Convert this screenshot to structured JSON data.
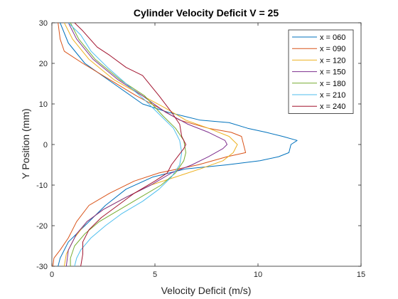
{
  "chart_data": {
    "type": "line",
    "title": "Cylinder Velocity Deficit V = 25",
    "xlabel": "Velocity Deficit (m/s)",
    "ylabel": "Y Position (mm)",
    "xlim": [
      0,
      15
    ],
    "ylim": [
      -30,
      30
    ],
    "xticks": [
      0,
      5,
      10,
      15
    ],
    "yticks": [
      -30,
      -20,
      -10,
      0,
      10,
      20,
      30
    ],
    "grid": false,
    "legend_location": "top-right",
    "series": [
      {
        "name": "x = 060",
        "color": "#0072BD",
        "points": [
          [
            0.4,
            30
          ],
          [
            0.8,
            25
          ],
          [
            1.6,
            20
          ],
          [
            3.0,
            15
          ],
          [
            4.4,
            10
          ],
          [
            5.6,
            8
          ],
          [
            6.4,
            7
          ],
          [
            7.2,
            6
          ],
          [
            8.6,
            5.4
          ],
          [
            9.5,
            4
          ],
          [
            10.4,
            3
          ],
          [
            11.2,
            2
          ],
          [
            11.9,
            1
          ],
          [
            11.6,
            0
          ],
          [
            11.5,
            -2
          ],
          [
            11.0,
            -3
          ],
          [
            10.1,
            -4
          ],
          [
            8.5,
            -5
          ],
          [
            6.5,
            -6
          ],
          [
            4.9,
            -8
          ],
          [
            3.6,
            -11
          ],
          [
            2.6,
            -15
          ],
          [
            1.6,
            -20
          ],
          [
            0.8,
            -24
          ],
          [
            0.4,
            -28
          ],
          [
            0.3,
            -30
          ]
        ]
      },
      {
        "name": "x = 090",
        "color": "#D95319",
        "points": [
          [
            0.3,
            30
          ],
          [
            0.4,
            26
          ],
          [
            0.6,
            23
          ],
          [
            1.5,
            20
          ],
          [
            2.8,
            16
          ],
          [
            4.1,
            12
          ],
          [
            5.2,
            9
          ],
          [
            6.2,
            6
          ],
          [
            7.6,
            4
          ],
          [
            8.7,
            3
          ],
          [
            9.2,
            2
          ],
          [
            9.3,
            0
          ],
          [
            9.4,
            -2
          ],
          [
            8.5,
            -3
          ],
          [
            7.1,
            -5
          ],
          [
            5.2,
            -7
          ],
          [
            4.0,
            -9
          ],
          [
            2.8,
            -12
          ],
          [
            1.8,
            -15
          ],
          [
            1.2,
            -19
          ],
          [
            0.8,
            -23
          ],
          [
            0.4,
            -26
          ],
          [
            0.1,
            -28
          ],
          [
            0.05,
            -30
          ]
        ]
      },
      {
        "name": "x = 120",
        "color": "#EDB120",
        "points": [
          [
            0.6,
            30
          ],
          [
            1.0,
            26
          ],
          [
            1.8,
            21
          ],
          [
            3.0,
            16
          ],
          [
            4.4,
            12
          ],
          [
            5.5,
            9
          ],
          [
            6.5,
            6
          ],
          [
            7.6,
            4
          ],
          [
            8.6,
            2
          ],
          [
            9.0,
            0
          ],
          [
            8.8,
            -2
          ],
          [
            8.3,
            -4
          ],
          [
            7.2,
            -6
          ],
          [
            6.0,
            -8
          ],
          [
            4.8,
            -10
          ],
          [
            3.6,
            -13
          ],
          [
            2.5,
            -16
          ],
          [
            1.7,
            -19
          ],
          [
            1.1,
            -23
          ],
          [
            0.7,
            -27
          ],
          [
            0.6,
            -30
          ]
        ]
      },
      {
        "name": "x = 150",
        "color": "#7E2F8E",
        "points": [
          [
            0.8,
            30
          ],
          [
            1.2,
            26
          ],
          [
            2.0,
            21
          ],
          [
            3.2,
            16
          ],
          [
            4.4,
            12
          ],
          [
            5.5,
            8
          ],
          [
            6.6,
            5
          ],
          [
            7.6,
            3
          ],
          [
            8.4,
            1
          ],
          [
            8.5,
            0
          ],
          [
            8.3,
            -1
          ],
          [
            7.6,
            -3
          ],
          [
            6.8,
            -5
          ],
          [
            5.8,
            -7
          ],
          [
            4.8,
            -10
          ],
          [
            3.6,
            -13
          ],
          [
            2.5,
            -16
          ],
          [
            1.7,
            -19
          ],
          [
            1.2,
            -22
          ],
          [
            0.8,
            -26
          ],
          [
            0.7,
            -30
          ]
        ]
      },
      {
        "name": "x = 180",
        "color": "#77AC30",
        "points": [
          [
            0.9,
            30
          ],
          [
            1.3,
            26
          ],
          [
            2.1,
            21
          ],
          [
            3.3,
            16
          ],
          [
            4.5,
            12
          ],
          [
            5.4,
            7
          ],
          [
            6.0,
            4
          ],
          [
            6.4,
            1
          ],
          [
            6.5,
            -2
          ],
          [
            6.4,
            -4
          ],
          [
            6.0,
            -7
          ],
          [
            5.3,
            -10
          ],
          [
            4.3,
            -13
          ],
          [
            3.3,
            -16
          ],
          [
            2.3,
            -19
          ],
          [
            1.6,
            -22
          ],
          [
            1.1,
            -25
          ],
          [
            0.9,
            -28
          ],
          [
            0.9,
            -30
          ]
        ]
      },
      {
        "name": "x = 210",
        "color": "#4DBEEE",
        "points": [
          [
            0.8,
            30
          ],
          [
            1.4,
            27
          ],
          [
            1.9,
            23
          ],
          [
            2.7,
            19
          ],
          [
            3.6,
            15
          ],
          [
            4.5,
            11
          ],
          [
            5.3,
            7
          ],
          [
            5.9,
            4
          ],
          [
            6.2,
            1
          ],
          [
            6.3,
            -2
          ],
          [
            6.2,
            -5
          ],
          [
            5.8,
            -8
          ],
          [
            5.2,
            -11
          ],
          [
            4.4,
            -14
          ],
          [
            3.4,
            -17
          ],
          [
            2.6,
            -20
          ],
          [
            1.9,
            -23
          ],
          [
            1.4,
            -26
          ],
          [
            1.2,
            -28
          ],
          [
            1.1,
            -30
          ]
        ]
      },
      {
        "name": "x = 240",
        "color": "#A2142F",
        "points": [
          [
            1.1,
            30
          ],
          [
            1.5,
            28
          ],
          [
            2.2,
            24
          ],
          [
            2.8,
            22
          ],
          [
            3.6,
            19
          ],
          [
            4.4,
            17
          ],
          [
            5.2,
            12
          ],
          [
            5.8,
            8
          ],
          [
            6.2,
            5
          ],
          [
            6.3,
            2
          ],
          [
            6.5,
            0
          ],
          [
            6.4,
            -1
          ],
          [
            6.1,
            -3
          ],
          [
            5.8,
            -5
          ],
          [
            5.6,
            -7
          ],
          [
            5.0,
            -9
          ],
          [
            4.0,
            -12
          ],
          [
            3.2,
            -15
          ],
          [
            2.4,
            -18
          ],
          [
            1.8,
            -21
          ],
          [
            1.5,
            -24
          ],
          [
            1.5,
            -27
          ],
          [
            1.4,
            -30
          ]
        ]
      }
    ]
  }
}
